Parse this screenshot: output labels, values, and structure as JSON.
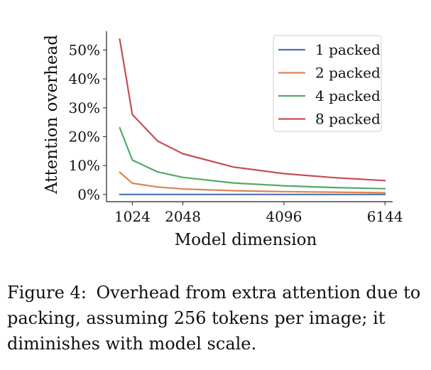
{
  "chart_data": {
    "type": "line",
    "title": "",
    "xlabel": "Model dimension",
    "ylabel": "Attention overhead",
    "x": [
      768,
      1024,
      1536,
      2048,
      3072,
      4096,
      5120,
      6144
    ],
    "xticks": [
      1024,
      2048,
      4096,
      6144
    ],
    "xtick_labels": [
      "1024",
      "2048",
      "4096",
      "6144"
    ],
    "yticks": [
      0,
      10,
      20,
      30,
      40,
      50
    ],
    "ytick_labels": [
      "0%",
      "10%",
      "20%",
      "30%",
      "40%",
      "50%"
    ],
    "xlim": [
      500,
      6300
    ],
    "ylim": [
      -2.5,
      56.5
    ],
    "legend_position": "top-right",
    "series": [
      {
        "name": "1 packed",
        "color": "#4c72b0",
        "values": [
          0,
          0,
          0,
          0,
          0,
          0,
          0,
          0
        ]
      },
      {
        "name": "2 packed",
        "color": "#dd8452",
        "values": [
          7.7,
          3.9,
          2.6,
          1.9,
          1.3,
          1.0,
          0.8,
          0.6
        ]
      },
      {
        "name": "4 packed",
        "color": "#55a868",
        "values": [
          23.1,
          11.9,
          7.8,
          5.9,
          4.0,
          3.0,
          2.4,
          2.0
        ]
      },
      {
        "name": "8 packed",
        "color": "#c44e52",
        "values": [
          53.8,
          27.7,
          18.5,
          14.1,
          9.5,
          7.2,
          5.8,
          4.8
        ]
      }
    ]
  },
  "caption": {
    "label": "Figure 4:",
    "text": "Overhead from extra attention due to packing, assuming 256 tokens per image; it diminishes with model scale."
  }
}
